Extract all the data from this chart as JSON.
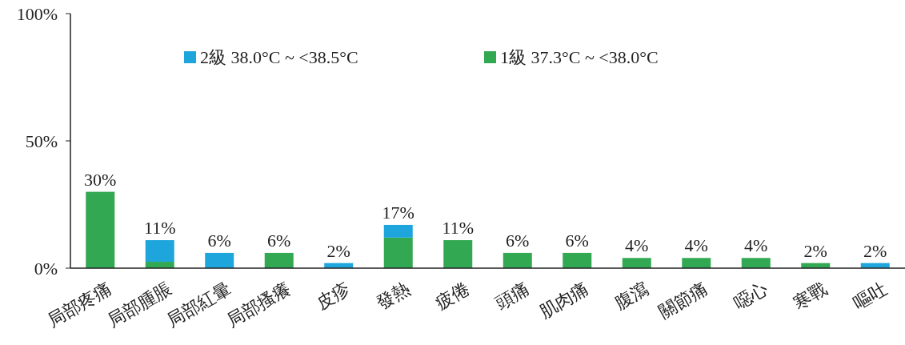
{
  "chart_data": {
    "type": "bar",
    "stacked": true,
    "categories": [
      "局部疼痛",
      "局部腫脹",
      "局部紅暈",
      "局部搔癢",
      "皮疹",
      "發熱",
      "疲倦",
      "頭痛",
      "肌肉痛",
      "腹瀉",
      "關節痛",
      "噁心",
      "寒戰",
      "嘔吐"
    ],
    "series": [
      {
        "name": "1級 37.3°C ~ <38.0°C",
        "color": "#33a852",
        "values": [
          30,
          2.5,
          null,
          6,
          null,
          12,
          11,
          6,
          6,
          4,
          4,
          4,
          2,
          null
        ]
      },
      {
        "name": "2級 38.0°C ~ <38.5°C",
        "color": "#1ea6dc",
        "values": [
          null,
          8.5,
          6,
          null,
          2,
          5,
          null,
          null,
          null,
          null,
          null,
          null,
          null,
          2
        ]
      }
    ],
    "totals": [
      "30%",
      "11%",
      "6%",
      "6%",
      "2%",
      "17%",
      "11%",
      "6%",
      "6%",
      "4%",
      "4%",
      "4%",
      "2%",
      "2%"
    ],
    "ylim": [
      0,
      100
    ],
    "yticks": [
      {
        "value": 0,
        "label": "0%"
      },
      {
        "value": 50,
        "label": "50%"
      },
      {
        "value": 100,
        "label": "100%"
      }
    ],
    "legend": "top"
  }
}
